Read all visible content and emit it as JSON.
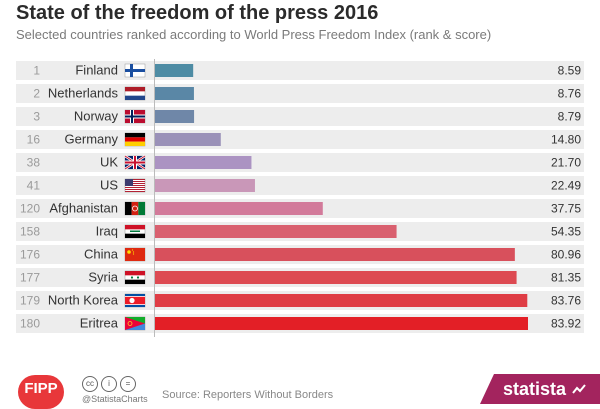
{
  "chart_data": {
    "type": "bar",
    "orientation": "horizontal",
    "title": "State of the freedom of the press 2016",
    "subtitle": "Selected countries ranked according to World Press Freedom Index (rank & score)",
    "categories": [
      "Finland",
      "Netherlands",
      "Norway",
      "Germany",
      "UK",
      "US",
      "Afghanistan",
      "Iraq",
      "China",
      "Syria",
      "North Korea",
      "Eritrea"
    ],
    "ranks": [
      "1",
      "2",
      "3",
      "16",
      "38",
      "41",
      "120",
      "158",
      "176",
      "177",
      "179",
      "180"
    ],
    "values": [
      8.59,
      8.76,
      8.79,
      14.8,
      21.7,
      22.49,
      37.75,
      54.35,
      80.96,
      81.35,
      83.76,
      83.92
    ],
    "value_labels": [
      "8.59",
      "8.76",
      "8.79",
      "14.80",
      "21.70",
      "22.49",
      "37.75",
      "54.35",
      "80.96",
      "81.35",
      "83.76",
      "83.92"
    ],
    "bar_colors": [
      "#4e8ca4",
      "#5a87a6",
      "#6f87a8",
      "#9a91b8",
      "#ab93c2",
      "#c997b8",
      "#d27a9a",
      "#d9606f",
      "#d8505c",
      "#dd4a52",
      "#df3d45",
      "#e31f26"
    ],
    "flag_icons": [
      "finland-flag-icon",
      "netherlands-flag-icon",
      "norway-flag-icon",
      "germany-flag-icon",
      "uk-flag-icon",
      "us-flag-icon",
      "afghanistan-flag-icon",
      "iraq-flag-icon",
      "china-flag-icon",
      "syria-flag-icon",
      "north-korea-flag-icon",
      "eritrea-flag-icon"
    ],
    "xlim": [
      0,
      86
    ],
    "grid": false
  },
  "footer": {
    "fipp_logo": "FIPP",
    "handle": "@StatistaCharts",
    "source": "Source: Reporters Without Borders",
    "brand": "statista",
    "cc_icons": [
      "cc-icon",
      "by-icon",
      "nd-icon"
    ]
  }
}
